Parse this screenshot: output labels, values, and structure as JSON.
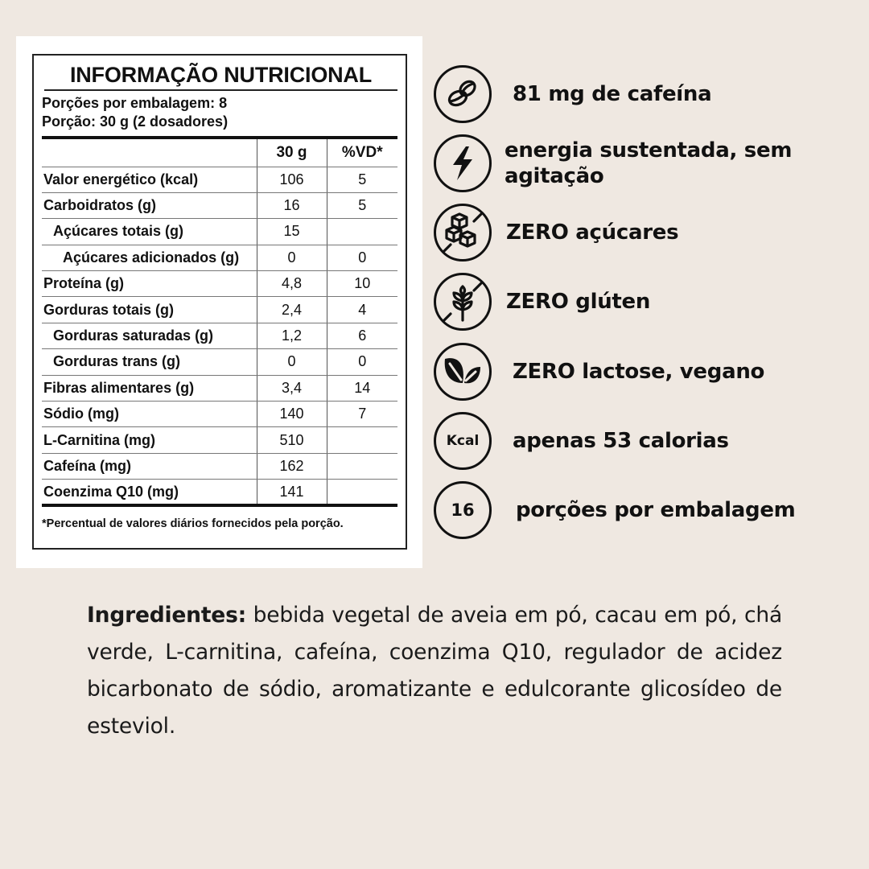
{
  "nutrition": {
    "title": "INFORMAÇÃO NUTRICIONAL",
    "servings_per_package": "Porções por embalagem: 8",
    "serving_size": "Porção: 30 g (2 dosadores)",
    "columns": [
      "",
      "30 g",
      "%VD*"
    ],
    "rows": [
      {
        "name": "Valor energético (kcal)",
        "value": "106",
        "dv": "5",
        "indent": 0
      },
      {
        "name": "Carboidratos (g)",
        "value": "16",
        "dv": "5",
        "indent": 0
      },
      {
        "name": "Açúcares totais (g)",
        "value": "15",
        "dv": "",
        "indent": 1
      },
      {
        "name": "Açúcares adicionados (g)",
        "value": "0",
        "dv": "0",
        "indent": 2
      },
      {
        "name": "Proteína (g)",
        "value": "4,8",
        "dv": "10",
        "indent": 0
      },
      {
        "name": "Gorduras totais (g)",
        "value": "2,4",
        "dv": "4",
        "indent": 0
      },
      {
        "name": "Gorduras saturadas (g)",
        "value": "1,2",
        "dv": "6",
        "indent": 1
      },
      {
        "name": "Gorduras trans (g)",
        "value": "0",
        "dv": "0",
        "indent": 1
      },
      {
        "name": "Fibras alimentares (g)",
        "value": "3,4",
        "dv": "14",
        "indent": 0
      },
      {
        "name": "Sódio (mg)",
        "value": "140",
        "dv": "7",
        "indent": 0
      },
      {
        "name": "L-Carnitina (mg)",
        "value": "510",
        "dv": "",
        "indent": 0
      },
      {
        "name": "Cafeína (mg)",
        "value": "162",
        "dv": "",
        "indent": 0
      },
      {
        "name": "Coenzima Q10 (mg)",
        "value": "141",
        "dv": "",
        "indent": 0
      }
    ],
    "footnote": "*Percentual de valores diários fornecidos pela porção."
  },
  "features": [
    {
      "icon": "coffee-bean-icon",
      "text": "81 mg de cafeína"
    },
    {
      "icon": "lightning-icon",
      "text": "energia sustentada, sem agitação"
    },
    {
      "icon": "no-sugar-cubes-icon",
      "text": "ZERO açúcares"
    },
    {
      "icon": "no-gluten-wheat-icon",
      "text": "ZERO glúten"
    },
    {
      "icon": "leaves-icon",
      "text": "ZERO lactose, vegano"
    },
    {
      "icon": "kcal-icon",
      "icon_text": "Kcal",
      "text": "apenas 53 calorias"
    },
    {
      "icon": "number-icon",
      "icon_text": "16",
      "text": "porções por embalagem"
    }
  ],
  "ingredients": {
    "label": "Ingredientes:",
    "text": " bebida vegetal de aveia em pó, cacau em pó, chá verde, L-carnitina, cafeína, coenzima Q10, regulador de acidez bicarbonato de sódio, aromatizante e edulcorante glicosídeo de esteviol."
  }
}
